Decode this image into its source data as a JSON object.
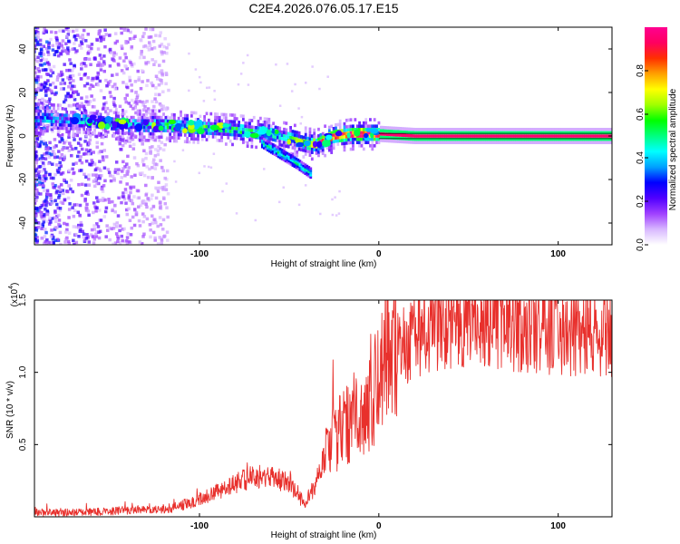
{
  "title": "C2E4.2026.076.05.17.E15",
  "chart_data": [
    {
      "type": "heatmap",
      "name": "spectrogram",
      "xlabel": "Height of straight line (km)",
      "ylabel": "Frequency (Hz)",
      "xlim": [
        -192,
        130
      ],
      "ylim": [
        -50,
        50
      ],
      "xticks": [
        -100,
        0,
        100
      ],
      "yticks": [
        -40,
        -20,
        0,
        20,
        40
      ],
      "xtick_labels": [
        "-100",
        "0",
        "100"
      ],
      "ytick_labels": [
        "-40",
        "-20",
        "0",
        "20",
        "40"
      ],
      "ridge": {
        "description": "dominant spectral ridge (frequency vs height)",
        "x": [
          -190,
          -160,
          -140,
          -120,
          -100,
          -80,
          -60,
          -45,
          -35,
          -25,
          -15,
          0,
          20,
          60,
          100,
          130
        ],
        "y": [
          8,
          7,
          5,
          5,
          4,
          3,
          1,
          -2,
          -4,
          0,
          1,
          1,
          0,
          0,
          0,
          0
        ],
        "amplitude": [
          0.3,
          0.35,
          0.4,
          0.45,
          0.5,
          0.45,
          0.45,
          0.5,
          0.85,
          0.85,
          0.9,
          0.95,
          0.95,
          0.95,
          0.95,
          0.95
        ]
      },
      "secondary_branch": {
        "x": [
          -65,
          -55,
          -45,
          -38
        ],
        "y": [
          -3,
          -8,
          -13,
          -17
        ]
      },
      "colorbar": {
        "label": "Normalized spectral amplitude",
        "range": [
          0,
          1
        ],
        "ticks": [
          0.0,
          0.2,
          0.4,
          0.6,
          0.8
        ],
        "tick_labels": [
          "0.0",
          "0.2",
          "0.4",
          "0.6",
          "0.8"
        ],
        "colors": [
          "#ffffff",
          "#d8b8ff",
          "#a040ff",
          "#5000ff",
          "#0000ff",
          "#00a0ff",
          "#00ffff",
          "#00ff80",
          "#00ff00",
          "#a0ff00",
          "#ffff00",
          "#ffa000",
          "#ff3000",
          "#ff0060",
          "#ff0090"
        ]
      }
    },
    {
      "type": "line",
      "name": "snr",
      "xlabel": "Height of straight line (km)",
      "ylabel": "SNR (10 * v/v)",
      "scale_label": "(x10",
      "scale_exponent": "4",
      "xlim": [
        -192,
        130
      ],
      "ylim": [
        0,
        1.5
      ],
      "xticks": [
        -100,
        0,
        100
      ],
      "yticks": [
        0.5,
        1.0,
        1.5
      ],
      "xtick_labels": [
        "-100",
        "0",
        "100"
      ],
      "ytick_labels": [
        "0.5",
        "1.0",
        "1.5"
      ],
      "color": "#e8302c",
      "series": [
        {
          "name": "SNR envelope",
          "x": [
            -192,
            -170,
            -150,
            -130,
            -115,
            -100,
            -90,
            -80,
            -70,
            -60,
            -50,
            -42,
            -36,
            -30,
            -25,
            -20,
            -15,
            -10,
            -5,
            0,
            10,
            20,
            30,
            40,
            50,
            60,
            70,
            80,
            90,
            100,
            110,
            120,
            130
          ],
          "y": [
            0.03,
            0.03,
            0.04,
            0.05,
            0.06,
            0.12,
            0.17,
            0.23,
            0.28,
            0.27,
            0.24,
            0.09,
            0.2,
            0.42,
            0.55,
            0.6,
            0.68,
            0.74,
            0.8,
            0.95,
            1.15,
            1.25,
            1.3,
            1.33,
            1.35,
            1.35,
            1.33,
            1.3,
            1.29,
            1.28,
            1.27,
            1.27,
            1.27
          ]
        }
      ]
    }
  ]
}
